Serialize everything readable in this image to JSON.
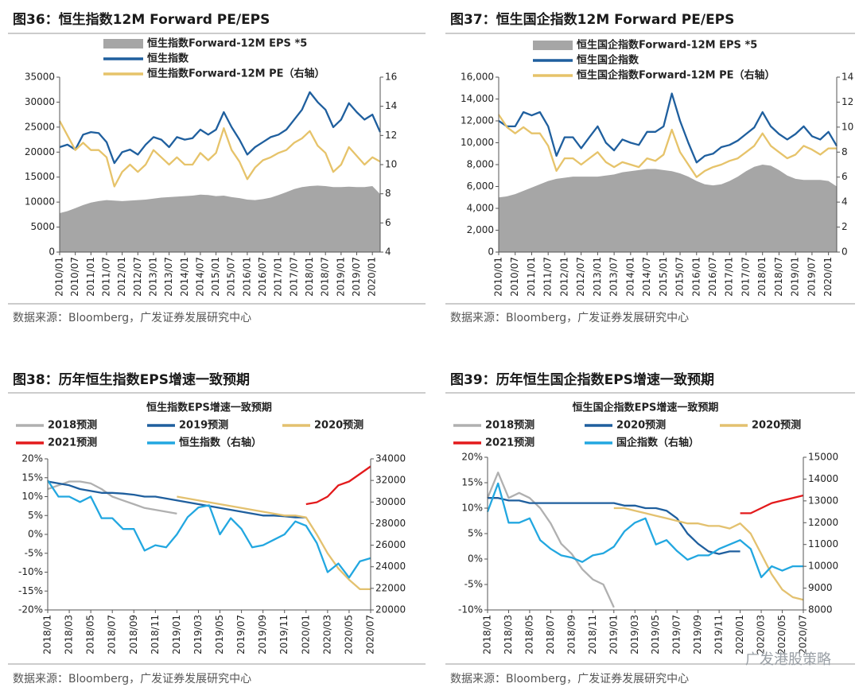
{
  "chart_data": [
    {
      "type": "line",
      "title": "图36：恒生指数12M Forward PE/EPS",
      "source": "数据来源：Bloomberg，广发证券发展研究中心",
      "categories": [
        "2010/01",
        null,
        "2010/07",
        null,
        "2011/01",
        null,
        "2011/07",
        null,
        "2012/01",
        null,
        "2012/07",
        null,
        "2013/01",
        null,
        "2013/07",
        null,
        "2014/01",
        null,
        "2014/07",
        null,
        "2015/01",
        null,
        "2015/07",
        null,
        "2016/01",
        null,
        "2016/07",
        null,
        "2017/01",
        null,
        "2017/07",
        null,
        "2018/01",
        null,
        "2018/07",
        null,
        "2019/01",
        null,
        "2019/07",
        null,
        "2020/01",
        null
      ],
      "series": [
        {
          "name": "恒生指数Forward-12M EPS *5",
          "color": "#a6a6a6",
          "mark": "area",
          "values": [
            7800,
            8200,
            8800,
            9400,
            9900,
            10200,
            10400,
            10300,
            10200,
            10300,
            10400,
            10500,
            10700,
            10900,
            11000,
            11100,
            11200,
            11300,
            11500,
            11400,
            11200,
            11300,
            11000,
            10800,
            10500,
            10400,
            10600,
            10900,
            11400,
            12000,
            12600,
            13000,
            13200,
            13300,
            13200,
            13000,
            13000,
            13100,
            13000,
            13000,
            13200,
            11600
          ]
        },
        {
          "name": "恒生指数",
          "color": "#1f5f9e",
          "values": [
            21000,
            21500,
            20500,
            23500,
            24000,
            23800,
            22000,
            17800,
            20000,
            20500,
            19500,
            21500,
            23000,
            22500,
            21000,
            23000,
            22500,
            22800,
            24500,
            23500,
            24500,
            28000,
            25000,
            22500,
            19500,
            21000,
            22000,
            23000,
            23500,
            24500,
            26500,
            28500,
            32000,
            30000,
            28500,
            25000,
            26500,
            29800,
            28000,
            26500,
            27500,
            24000
          ]
        },
        {
          "name": "恒生指数Forward-12M PE（右轴）",
          "color": "#e6c36a",
          "axis": "y2",
          "values": [
            13,
            12,
            11,
            11.5,
            11,
            11,
            10.5,
            8.5,
            9.5,
            10,
            9.5,
            10,
            11,
            10.5,
            10,
            10.5,
            10,
            10,
            10.8,
            10.3,
            10.8,
            12.5,
            11,
            10.2,
            9,
            9.8,
            10.3,
            10.5,
            10.8,
            11,
            11.5,
            11.8,
            12.3,
            11.3,
            10.8,
            9.5,
            10,
            11.2,
            10.6,
            10,
            10.5,
            10.2
          ]
        }
      ],
      "ylim": [
        0,
        35000
      ],
      "yticks": [
        0,
        5000,
        10000,
        15000,
        20000,
        25000,
        30000,
        35000
      ],
      "y2lim": [
        4,
        16
      ],
      "y2ticks": [
        4,
        6,
        8,
        10,
        12,
        14,
        16
      ]
    },
    {
      "type": "line",
      "title": "图37：恒生国企指数12M Forward PE/EPS",
      "source": "数据来源：Bloomberg，广发证券发展研究中心",
      "categories": [
        "2010/01",
        null,
        "2010/07",
        null,
        "2011/01",
        null,
        "2011/07",
        null,
        "2012/01",
        null,
        "2012/07",
        null,
        "2013/01",
        null,
        "2013/07",
        null,
        "2014/01",
        null,
        "2014/07",
        null,
        "2015/01",
        null,
        "2015/07",
        null,
        "2016/01",
        null,
        "2016/07",
        null,
        "2017/01",
        null,
        "2017/07",
        null,
        "2018/01",
        null,
        "2018/07",
        null,
        "2019/01",
        null,
        "2019/07",
        null,
        "2020/01",
        null
      ],
      "series": [
        {
          "name": "恒生国企指数Forward-12M EPS *5",
          "color": "#a6a6a6",
          "mark": "area",
          "values": [
            5000,
            5100,
            5300,
            5600,
            5900,
            6200,
            6500,
            6700,
            6800,
            6900,
            6900,
            6900,
            6900,
            7000,
            7100,
            7300,
            7400,
            7500,
            7600,
            7600,
            7500,
            7400,
            7200,
            6900,
            6500,
            6200,
            6100,
            6200,
            6500,
            6900,
            7400,
            7800,
            8000,
            7900,
            7500,
            7000,
            6700,
            6600,
            6600,
            6600,
            6500,
            6000
          ]
        },
        {
          "name": "恒生国企指数",
          "color": "#1f5f9e",
          "values": [
            12000,
            11500,
            11500,
            12800,
            12500,
            12800,
            11500,
            8800,
            10500,
            10500,
            9500,
            10500,
            11500,
            10000,
            9300,
            10300,
            10000,
            9800,
            11000,
            11000,
            11500,
            14500,
            12000,
            10000,
            8200,
            8800,
            9000,
            9600,
            9800,
            10200,
            10800,
            11400,
            12800,
            11500,
            10800,
            10300,
            10800,
            11500,
            10600,
            10300,
            11000,
            9700
          ]
        },
        {
          "name": "恒生国企指数Forward-12M PE（右轴）",
          "color": "#e6c36a",
          "axis": "y2",
          "values": [
            11,
            10,
            9.5,
            10,
            9.5,
            9.5,
            8.5,
            6.5,
            7.5,
            7.5,
            7,
            7.5,
            8,
            7.2,
            6.8,
            7.2,
            7,
            6.8,
            7.5,
            7.3,
            7.8,
            9.8,
            8,
            7,
            6,
            6.5,
            6.8,
            7,
            7.3,
            7.5,
            8,
            8.5,
            9.5,
            8.5,
            8,
            7.5,
            7.8,
            8.5,
            8.2,
            7.8,
            8.3,
            8.3
          ]
        }
      ],
      "ylim": [
        0,
        16000
      ],
      "yticks": [
        0,
        {
          "value": 2000,
          "label": "2,000"
        },
        {
          "value": 4000,
          "label": "4,000"
        },
        {
          "value": 6000,
          "label": "6,000"
        },
        {
          "value": 8000,
          "label": "8,000"
        },
        {
          "value": 10000,
          "label": "10,000"
        },
        {
          "value": 12000,
          "label": "12,000"
        },
        {
          "value": 14000,
          "label": "14,000"
        },
        {
          "value": 16000,
          "label": "16,000"
        }
      ],
      "y2lim": [
        0,
        14
      ],
      "y2ticks": [
        0,
        2,
        4,
        6,
        8,
        10,
        12,
        14
      ]
    },
    {
      "type": "line",
      "title": "图38：历年恒生指数EPS增速一致预期",
      "subtitle": "恒生指数EPS增速一致预期",
      "source": "数据来源：Bloomberg，广发证券发展研究中心",
      "categories": [
        "2018/01",
        null,
        "2018/03",
        null,
        "2018/05",
        null,
        "2018/07",
        null,
        "2018/09",
        null,
        "2018/11",
        null,
        "2019/01",
        null,
        "2019/03",
        null,
        "2019/05",
        null,
        "2019/07",
        null,
        "2019/09",
        null,
        "2019/11",
        null,
        "2020/01",
        null,
        "2020/03",
        null,
        "2020/05",
        null,
        "2020/07"
      ],
      "series": [
        {
          "name": "2018预测",
          "color": "#b0b0b0",
          "values": [
            12,
            13,
            14,
            14,
            13.5,
            12,
            10,
            9,
            8,
            7,
            6.5,
            6,
            5.5,
            null,
            null,
            null,
            null,
            null,
            null,
            null,
            null,
            null,
            null,
            null,
            null,
            null,
            null,
            null,
            null,
            null,
            null
          ]
        },
        {
          "name": "2019预测",
          "color": "#1f5f9e",
          "values": [
            14,
            13.5,
            13,
            12,
            11.5,
            11,
            11,
            10.8,
            10.5,
            10,
            10,
            9.5,
            9,
            8.5,
            8,
            7.5,
            7,
            6.5,
            6,
            5.5,
            5,
            5,
            4.8,
            4.5,
            4.5,
            null,
            null,
            null,
            null,
            null,
            null
          ]
        },
        {
          "name": "2020预测",
          "color": "#e3c16f",
          "values": [
            null,
            null,
            null,
            null,
            null,
            null,
            null,
            null,
            null,
            null,
            null,
            null,
            10,
            9.5,
            9,
            8.5,
            8,
            7.5,
            7,
            6.5,
            6,
            5.5,
            5,
            5,
            4.5,
            0,
            -5,
            -9,
            -12,
            -14.5,
            -14.5
          ]
        },
        {
          "name": "2021预测",
          "color": "#e31a1c",
          "values": [
            null,
            null,
            null,
            null,
            null,
            null,
            null,
            null,
            null,
            null,
            null,
            null,
            null,
            null,
            null,
            null,
            null,
            null,
            null,
            null,
            null,
            null,
            null,
            null,
            8,
            8.5,
            10,
            13,
            14,
            16,
            18
          ]
        },
        {
          "name": "恒生指数（右轴）",
          "color": "#22a7e0",
          "axis": "y2",
          "values": [
            32000,
            30500,
            30500,
            30000,
            30500,
            28500,
            28500,
            27500,
            27500,
            25500,
            26000,
            25800,
            27000,
            28600,
            29500,
            29700,
            27000,
            28500,
            27500,
            25800,
            26000,
            26500,
            27000,
            28200,
            27800,
            26200,
            23500,
            24300,
            23000,
            24500,
            24800
          ]
        }
      ],
      "ylim": [
        -20,
        20
      ],
      "yticks": [
        {
          "value": -20,
          "label": "-20%"
        },
        {
          "value": -15,
          "label": "-15%"
        },
        {
          "value": -10,
          "label": "-10%"
        },
        {
          "value": -5,
          "label": "-5%"
        },
        {
          "value": 0,
          "label": "0%"
        },
        {
          "value": 5,
          "label": "5%"
        },
        {
          "value": 10,
          "label": "10%"
        },
        {
          "value": 15,
          "label": "15%"
        },
        {
          "value": 20,
          "label": "20%"
        }
      ],
      "y2lim": [
        20000,
        34000
      ],
      "y2ticks": [
        20000,
        22000,
        24000,
        26000,
        28000,
        30000,
        32000,
        34000
      ]
    },
    {
      "type": "line",
      "title": "图39：历年恒生国企指数EPS增速一致预期",
      "subtitle": "恒生国企指数EPS增速一致预期",
      "source": "数据来源：Bloomberg，广发证券发展研究中心",
      "categories": [
        "2018/01",
        null,
        "2018/03",
        null,
        "2018/05",
        null,
        "2018/07",
        null,
        "2018/09",
        null,
        "2018/11",
        null,
        "2019/01",
        null,
        "2019/03",
        null,
        "2019/05",
        null,
        "2019/07",
        null,
        "2019/09",
        null,
        "2019/11",
        null,
        "2020/01",
        null,
        "2020/03",
        null,
        "2020/05",
        null,
        "2020/07"
      ],
      "series": [
        {
          "name": "2018预测",
          "color": "#b0b0b0",
          "values": [
            12,
            17,
            12,
            13,
            12,
            10,
            7,
            3,
            1,
            -2,
            -4,
            -5,
            -9.5,
            null,
            null,
            null,
            null,
            null,
            null,
            null,
            null,
            null,
            null,
            null,
            null,
            null,
            null,
            null,
            null,
            null,
            null
          ]
        },
        {
          "name": "2020预测",
          "color": "#1f5f9e",
          "values": [
            12,
            12,
            11.5,
            11.5,
            11,
            11,
            11,
            11,
            11,
            11,
            11,
            11,
            11,
            10.5,
            10.5,
            10,
            10,
            9.5,
            8,
            5,
            3,
            1.5,
            1,
            1.5,
            1.5,
            null,
            null,
            null,
            null,
            null,
            null
          ]
        },
        {
          "name": "2020预测",
          "color": "#e3c16f",
          "values": [
            null,
            null,
            null,
            null,
            null,
            null,
            null,
            null,
            null,
            null,
            null,
            null,
            10,
            10,
            9.5,
            9,
            8.5,
            8,
            7.5,
            7,
            7,
            6.5,
            6.5,
            6,
            7,
            5,
            1,
            -3,
            -6,
            -7.5,
            -8
          ]
        },
        {
          "name": "2021预测",
          "color": "#e31a1c",
          "values": [
            null,
            null,
            null,
            null,
            null,
            null,
            null,
            null,
            null,
            null,
            null,
            null,
            null,
            null,
            null,
            null,
            null,
            null,
            null,
            null,
            null,
            null,
            null,
            null,
            9,
            9,
            10,
            11,
            11.5,
            12,
            12.5
          ]
        },
        {
          "name": "国企指数（右轴）",
          "color": "#22a7e0",
          "axis": "y2",
          "values": [
            12500,
            13800,
            12000,
            12000,
            12200,
            11200,
            10800,
            10500,
            10400,
            10200,
            10500,
            10600,
            10900,
            11600,
            12000,
            12200,
            11000,
            11200,
            10700,
            10300,
            10500,
            10500,
            10800,
            11000,
            11200,
            10800,
            9500,
            10000,
            9800,
            10000,
            10000
          ]
        }
      ],
      "ylim": [
        -10,
        20
      ],
      "yticks": [
        {
          "value": -10,
          "label": "-10%"
        },
        {
          "value": -5,
          "label": "-5%"
        },
        {
          "value": 0,
          "label": "0%"
        },
        {
          "value": 5,
          "label": "5%"
        },
        {
          "value": 10,
          "label": "10%"
        },
        {
          "value": 15,
          "label": "15%"
        },
        {
          "value": 20,
          "label": "20%"
        }
      ],
      "y2lim": [
        8000,
        15000
      ],
      "y2ticks": [
        8000,
        9000,
        10000,
        11000,
        12000,
        13000,
        14000,
        15000
      ]
    }
  ],
  "watermark": "广发港股策略"
}
